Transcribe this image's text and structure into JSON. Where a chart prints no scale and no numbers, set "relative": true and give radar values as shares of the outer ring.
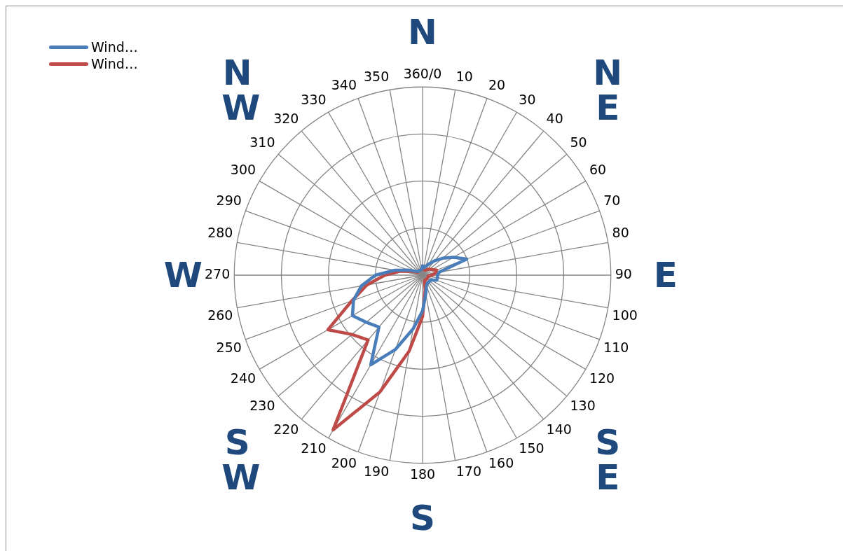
{
  "chart_data": {
    "type": "radar",
    "relative": true,
    "grid": true,
    "legend": "top left",
    "marker": "none",
    "categories": [
      "360/0",
      "10",
      "20",
      "30",
      "40",
      "50",
      "60",
      "70",
      "80",
      "90",
      "100",
      "110",
      "120",
      "130",
      "140",
      "150",
      "160",
      "170",
      "180",
      "190",
      "200",
      "210",
      "220",
      "230",
      "240",
      "250",
      "260",
      "270",
      "280",
      "290",
      "300",
      "310",
      "320",
      "330",
      "340",
      "350"
    ],
    "series": [
      {
        "name": "Wind…",
        "color": "#4a7ebb",
        "values": [
          0.05,
          0.04,
          0.05,
          0.07,
          0.1,
          0.14,
          0.19,
          0.25,
          0.09,
          0.08,
          0.08,
          0.08,
          0.05,
          0.05,
          0.05,
          0.05,
          0.06,
          0.1,
          0.19,
          0.29,
          0.42,
          0.55,
          0.36,
          0.39,
          0.43,
          0.39,
          0.33,
          0.25,
          0.15,
          0.08,
          0.04,
          0.03,
          0.03,
          0.03,
          0.03,
          0.03
        ]
      },
      {
        "name": "Wind…",
        "color": "#be4b48",
        "values": [
          0.03,
          0.03,
          0.03,
          0.03,
          0.04,
          0.05,
          0.06,
          0.08,
          0.07,
          0.05,
          0.03,
          0.03,
          0.03,
          0.03,
          0.03,
          0.03,
          0.03,
          0.08,
          0.22,
          0.41,
          0.66,
          0.95,
          0.45,
          0.49,
          0.58,
          0.4,
          0.3,
          0.2,
          0.12,
          0.06,
          0.03,
          0.03,
          0.03,
          0.03,
          0.03,
          0.03
        ]
      }
    ],
    "annotations": [
      "N",
      "NE",
      "E",
      "SE",
      "S",
      "SW",
      "W",
      "NW"
    ]
  }
}
